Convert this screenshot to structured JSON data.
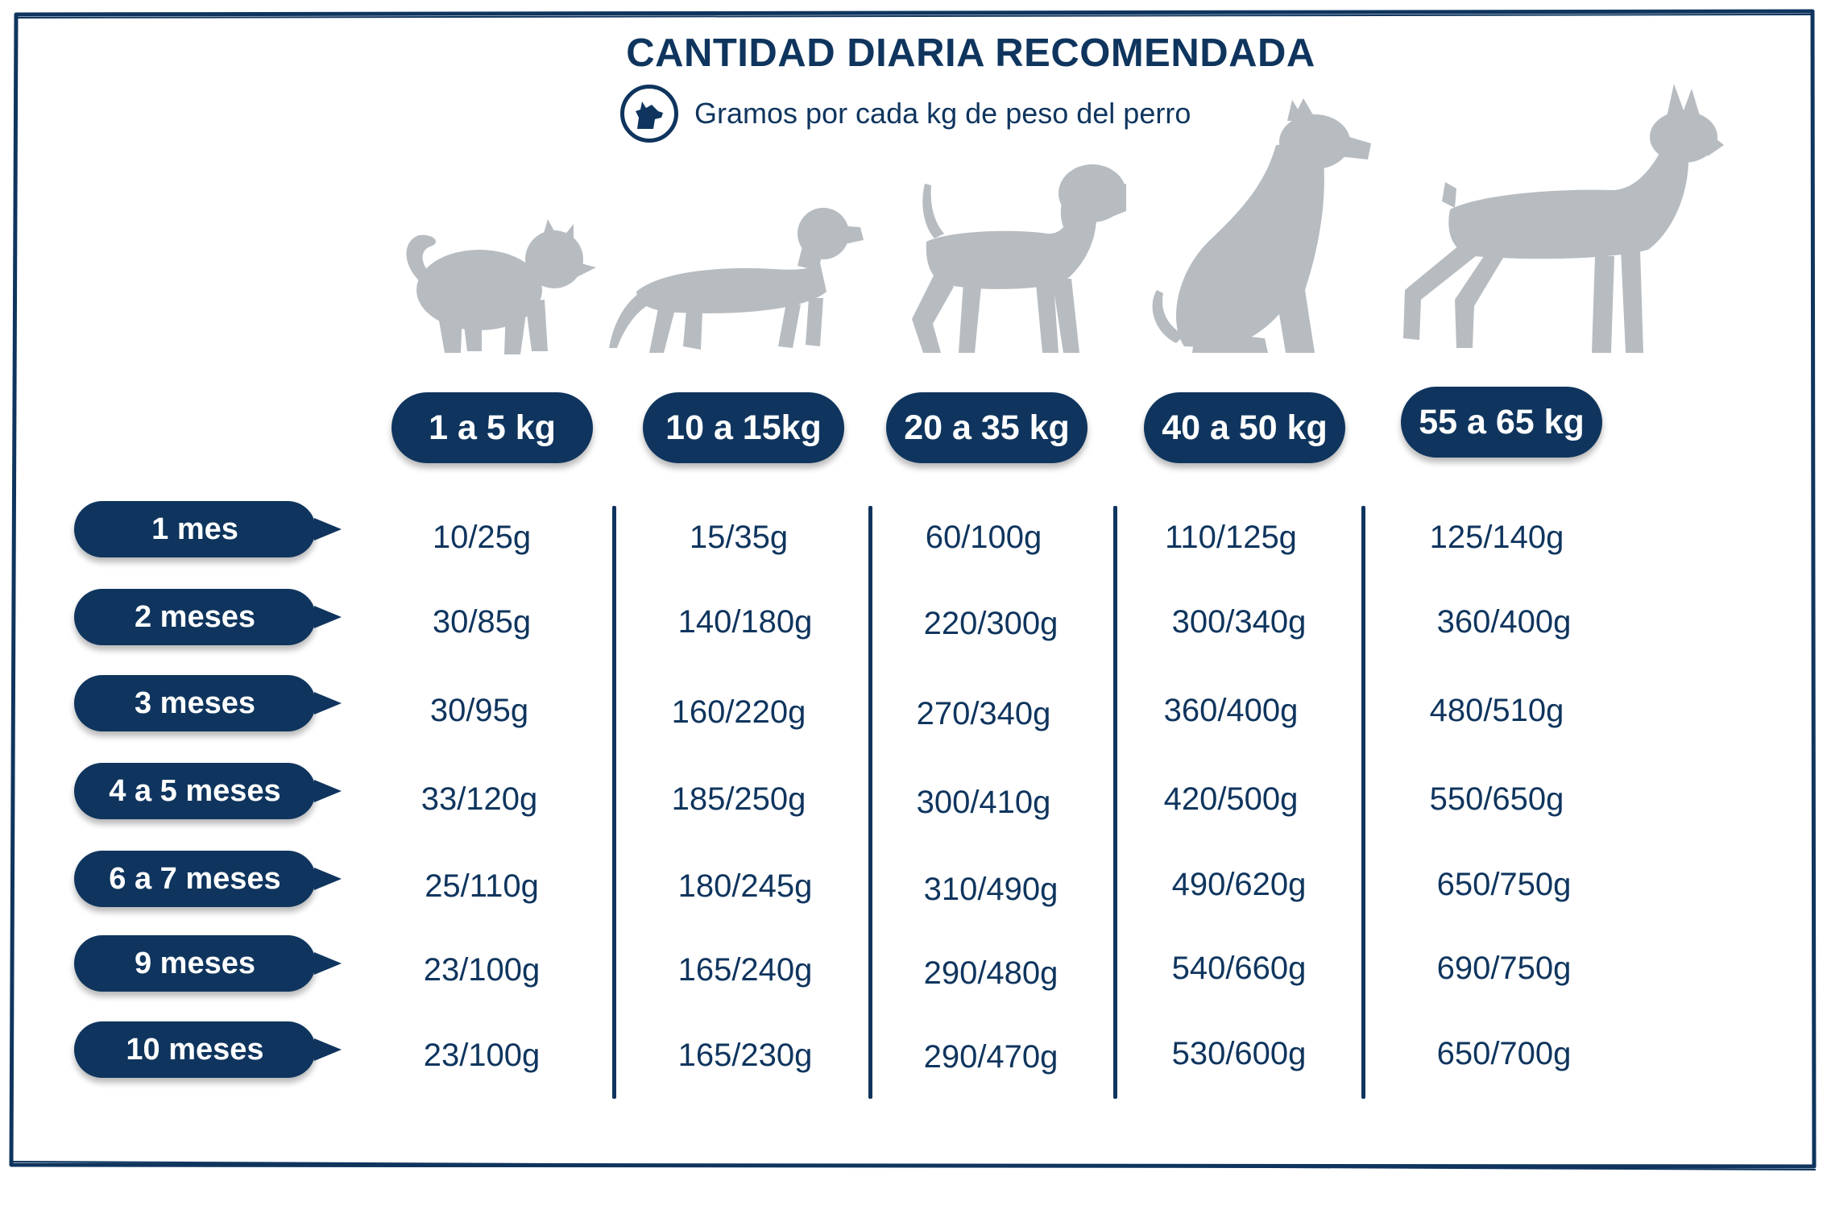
{
  "header": {
    "title": "CANTIDAD DIARIA RECOMENDADA",
    "subtitle": "Gramos por cada kg de peso del perro",
    "badge_icon": "dog-head-icon"
  },
  "colors": {
    "navy": "#0f355e",
    "dog_gray": "#b7bcc1",
    "background": "#ffffff"
  },
  "weight_columns": [
    "1 a 5 kg",
    "10 a 15kg",
    "20 a 35 kg",
    "40 a 50 kg",
    "55 a 65 kg"
  ],
  "dog_icons": [
    "chihuahua-icon",
    "dachshund-icon",
    "beagle-icon",
    "sitting-dog-icon",
    "doberman-icon"
  ],
  "rows": [
    {
      "age": "1 mes",
      "values": [
        "10/25g",
        "15/35g",
        "60/100g",
        "110/125g",
        "125/140g"
      ]
    },
    {
      "age": "2 meses",
      "values": [
        "30/85g",
        "140/180g",
        "220/300g",
        "300/340g",
        "360/400g"
      ]
    },
    {
      "age": "3 meses",
      "values": [
        "30/95g",
        "160/220g",
        "270/340g",
        "360/400g",
        "480/510g"
      ]
    },
    {
      "age": "4 a 5 meses",
      "values": [
        "33/120g",
        "185/250g",
        "300/410g",
        "420/500g",
        "550/650g"
      ]
    },
    {
      "age": "6 a 7 meses",
      "values": [
        "25/110g",
        "180/245g",
        "310/490g",
        "490/620g",
        "650/750g"
      ]
    },
    {
      "age": "9 meses",
      "values": [
        "23/100g",
        "165/240g",
        "290/480g",
        "540/660g",
        "690/750g"
      ]
    },
    {
      "age": "10 meses",
      "values": [
        "23/100g",
        "165/230g",
        "290/470g",
        "530/600g",
        "650/700g"
      ]
    }
  ]
}
